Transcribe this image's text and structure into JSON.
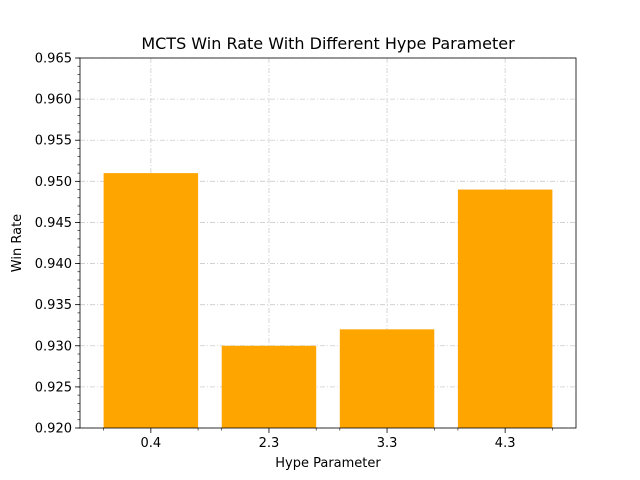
{
  "chart_data": {
    "type": "bar",
    "title": "MCTS Win Rate With Different Hype Parameter",
    "xlabel": "Hype Parameter",
    "ylabel": "Win Rate",
    "categories": [
      "0.4",
      "2.3",
      "3.3",
      "4.3"
    ],
    "values": [
      0.951,
      0.93,
      0.932,
      0.949
    ],
    "ylim": [
      0.92,
      0.965
    ],
    "yticks": [
      "0.920",
      "0.925",
      "0.930",
      "0.935",
      "0.940",
      "0.945",
      "0.950",
      "0.955",
      "0.960",
      "0.965"
    ],
    "grid": true,
    "bar_color": "#ffa500",
    "grid_color": "#cccccc"
  }
}
